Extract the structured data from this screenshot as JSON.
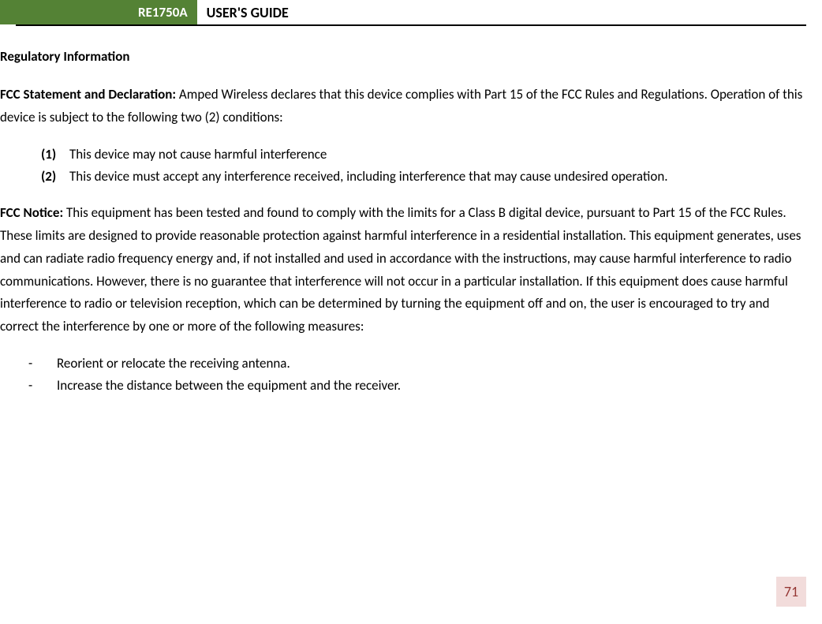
{
  "header": {
    "model": "RE1750A",
    "title": "USER'S GUIDE"
  },
  "section_title": "Regulatory Information",
  "fcc_statement": {
    "label": "FCC Statement and Declaration:",
    "text": " Amped Wireless declares that this device complies with Part 15 of the FCC Rules and Regulations.  Operation of this device is subject to the following two (2) conditions:"
  },
  "numbered_items": [
    {
      "marker": "(1)",
      "text": "This device may not cause harmful interference"
    },
    {
      "marker": "(2)",
      "text": "This device must accept any interference received, including interference that may cause undesired operation."
    }
  ],
  "fcc_notice": {
    "label": "FCC Notice:",
    "text": " This equipment has been tested and found to comply with the limits for a Class B digital device, pursuant to Part 15 of the FCC Rules.  These limits are designed to provide reasonable protection against harmful interference in a residential installation.  This equipment generates, uses and can radiate radio frequency energy and, if not installed and used in accordance with the instructions, may cause harmful interference to radio communications.  However, there is no guarantee that interference will not occur in a particular installation.  If this equipment does cause harmful interference to radio or television reception, which can be determined by turning the equipment off and on, the user is encouraged to try and correct the interference by one or more of the following measures:"
  },
  "dash_items": [
    "Reorient or relocate the receiving antenna.",
    "Increase the distance between the equipment and the receiver."
  ],
  "page_number": "71",
  "colors": {
    "header_green": "#548235",
    "page_bg": "#f2dcdb",
    "page_color": "#953734"
  }
}
